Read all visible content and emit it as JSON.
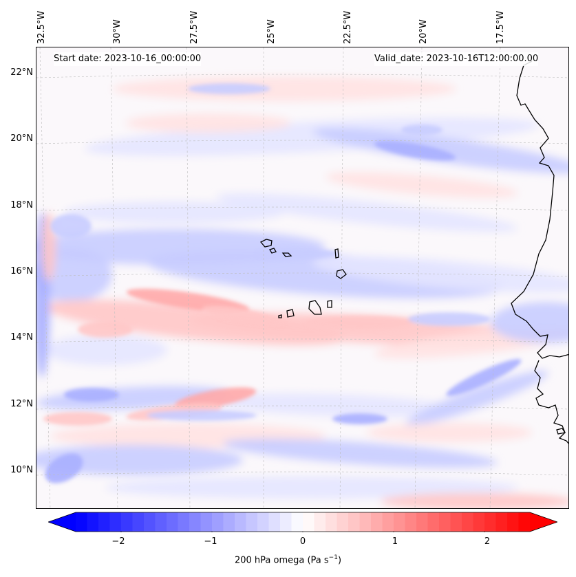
{
  "map": {
    "start_label": "Start date: 2023-10-16_00:00:00",
    "valid_label": "Valid_date: 2023-10-16T12:00:00.00",
    "latitude_labels": [
      "22°N",
      "20°N",
      "18°N",
      "16°N",
      "14°N",
      "12°N",
      "10°N"
    ],
    "longitude_labels": [
      "32.5°W",
      "30°W",
      "27.5°W",
      "25°W",
      "22.5°W",
      "20°W",
      "17.5°W"
    ],
    "extent": {
      "lon_min": -32.7,
      "lon_max": -16.6,
      "lat_min": 8.9,
      "lat_max": 22.8
    },
    "features": [
      "Cape Verde islands",
      "West African coastline"
    ]
  },
  "colorbar": {
    "ticks": [
      "−2",
      "−1",
      "0",
      "1",
      "2"
    ],
    "tick_values": [
      -2,
      -1,
      0,
      1,
      2
    ],
    "range": [
      -2.5,
      2.5
    ],
    "label": "200 hPa omega (Pa s",
    "label_sup": "−1",
    "label_end": ")",
    "colormap": "bwr",
    "colors": {
      "negative": "#0000ff",
      "zero": "#ffffff",
      "positive": "#ff0000"
    }
  }
}
